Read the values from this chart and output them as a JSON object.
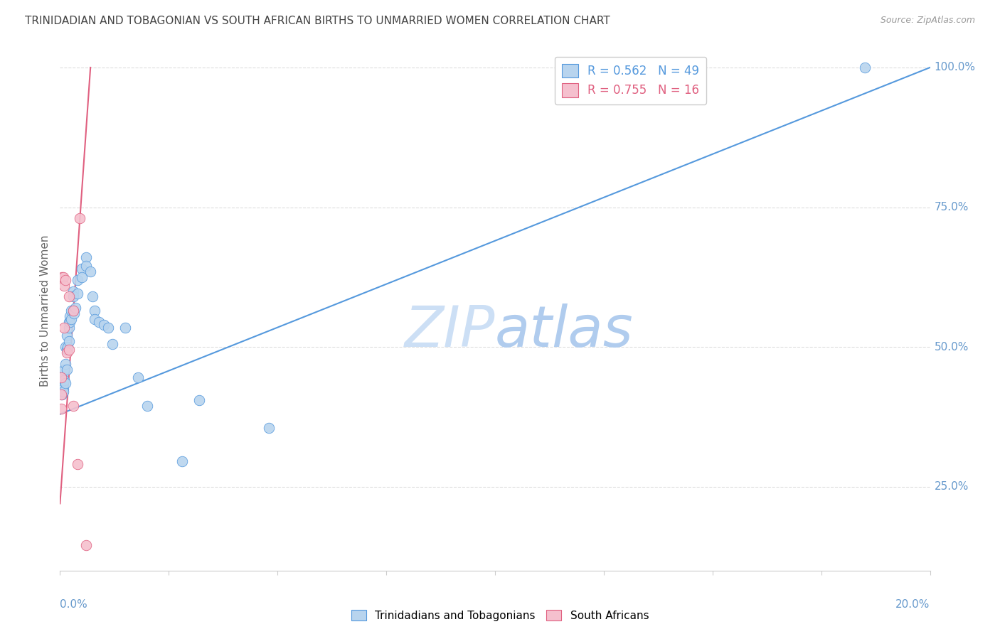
{
  "title": "TRINIDADIAN AND TOBAGONIAN VS SOUTH AFRICAN BIRTHS TO UNMARRIED WOMEN CORRELATION CHART",
  "source": "Source: ZipAtlas.com",
  "ylabel": "Births to Unmarried Women",
  "legend_blue_r": "0.562",
  "legend_blue_n": "49",
  "legend_pink_r": "0.755",
  "legend_pink_n": "16",
  "blue_scatter_x": [
    0.0002,
    0.0003,
    0.0005,
    0.0005,
    0.0007,
    0.0007,
    0.0008,
    0.001,
    0.001,
    0.0012,
    0.0012,
    0.0013,
    0.0015,
    0.0015,
    0.0015,
    0.0018,
    0.002,
    0.002,
    0.002,
    0.0022,
    0.0022,
    0.0025,
    0.0025,
    0.003,
    0.003,
    0.003,
    0.0032,
    0.0035,
    0.004,
    0.004,
    0.005,
    0.005,
    0.006,
    0.006,
    0.007,
    0.0075,
    0.008,
    0.008,
    0.009,
    0.01,
    0.011,
    0.012,
    0.015,
    0.018,
    0.02,
    0.028,
    0.032,
    0.048,
    0.185
  ],
  "blue_scatter_y": [
    0.43,
    0.44,
    0.445,
    0.415,
    0.43,
    0.425,
    0.42,
    0.46,
    0.44,
    0.5,
    0.47,
    0.435,
    0.52,
    0.495,
    0.46,
    0.5,
    0.545,
    0.535,
    0.51,
    0.555,
    0.545,
    0.565,
    0.55,
    0.6,
    0.59,
    0.565,
    0.56,
    0.57,
    0.62,
    0.595,
    0.64,
    0.625,
    0.66,
    0.645,
    0.635,
    0.59,
    0.565,
    0.55,
    0.545,
    0.54,
    0.535,
    0.505,
    0.535,
    0.445,
    0.395,
    0.295,
    0.405,
    0.355,
    1.0
  ],
  "pink_scatter_x": [
    0.0002,
    0.0003,
    0.0003,
    0.0005,
    0.0007,
    0.001,
    0.001,
    0.0012,
    0.0015,
    0.002,
    0.002,
    0.003,
    0.003,
    0.004,
    0.0045,
    0.006
  ],
  "pink_scatter_y": [
    0.445,
    0.415,
    0.39,
    0.625,
    0.625,
    0.61,
    0.535,
    0.62,
    0.49,
    0.59,
    0.495,
    0.565,
    0.395,
    0.29,
    0.73,
    0.145
  ],
  "blue_line_x": [
    0.0,
    0.2
  ],
  "blue_line_y": [
    0.38,
    1.0
  ],
  "pink_line_x": [
    0.0,
    0.007
  ],
  "pink_line_y": [
    0.22,
    1.0
  ],
  "blue_color": "#b8d4ee",
  "blue_line_color": "#5599dd",
  "pink_color": "#f5c0ce",
  "pink_line_color": "#e06080",
  "watermark_zip_color": "#cce0f5",
  "watermark_atlas_color": "#b0c8e8",
  "grid_color": "#dddddd",
  "title_color": "#444444",
  "axis_color": "#6699cc",
  "background_color": "#ffffff",
  "xlim": [
    0.0,
    0.2
  ],
  "ylim": [
    0.1,
    1.03
  ]
}
